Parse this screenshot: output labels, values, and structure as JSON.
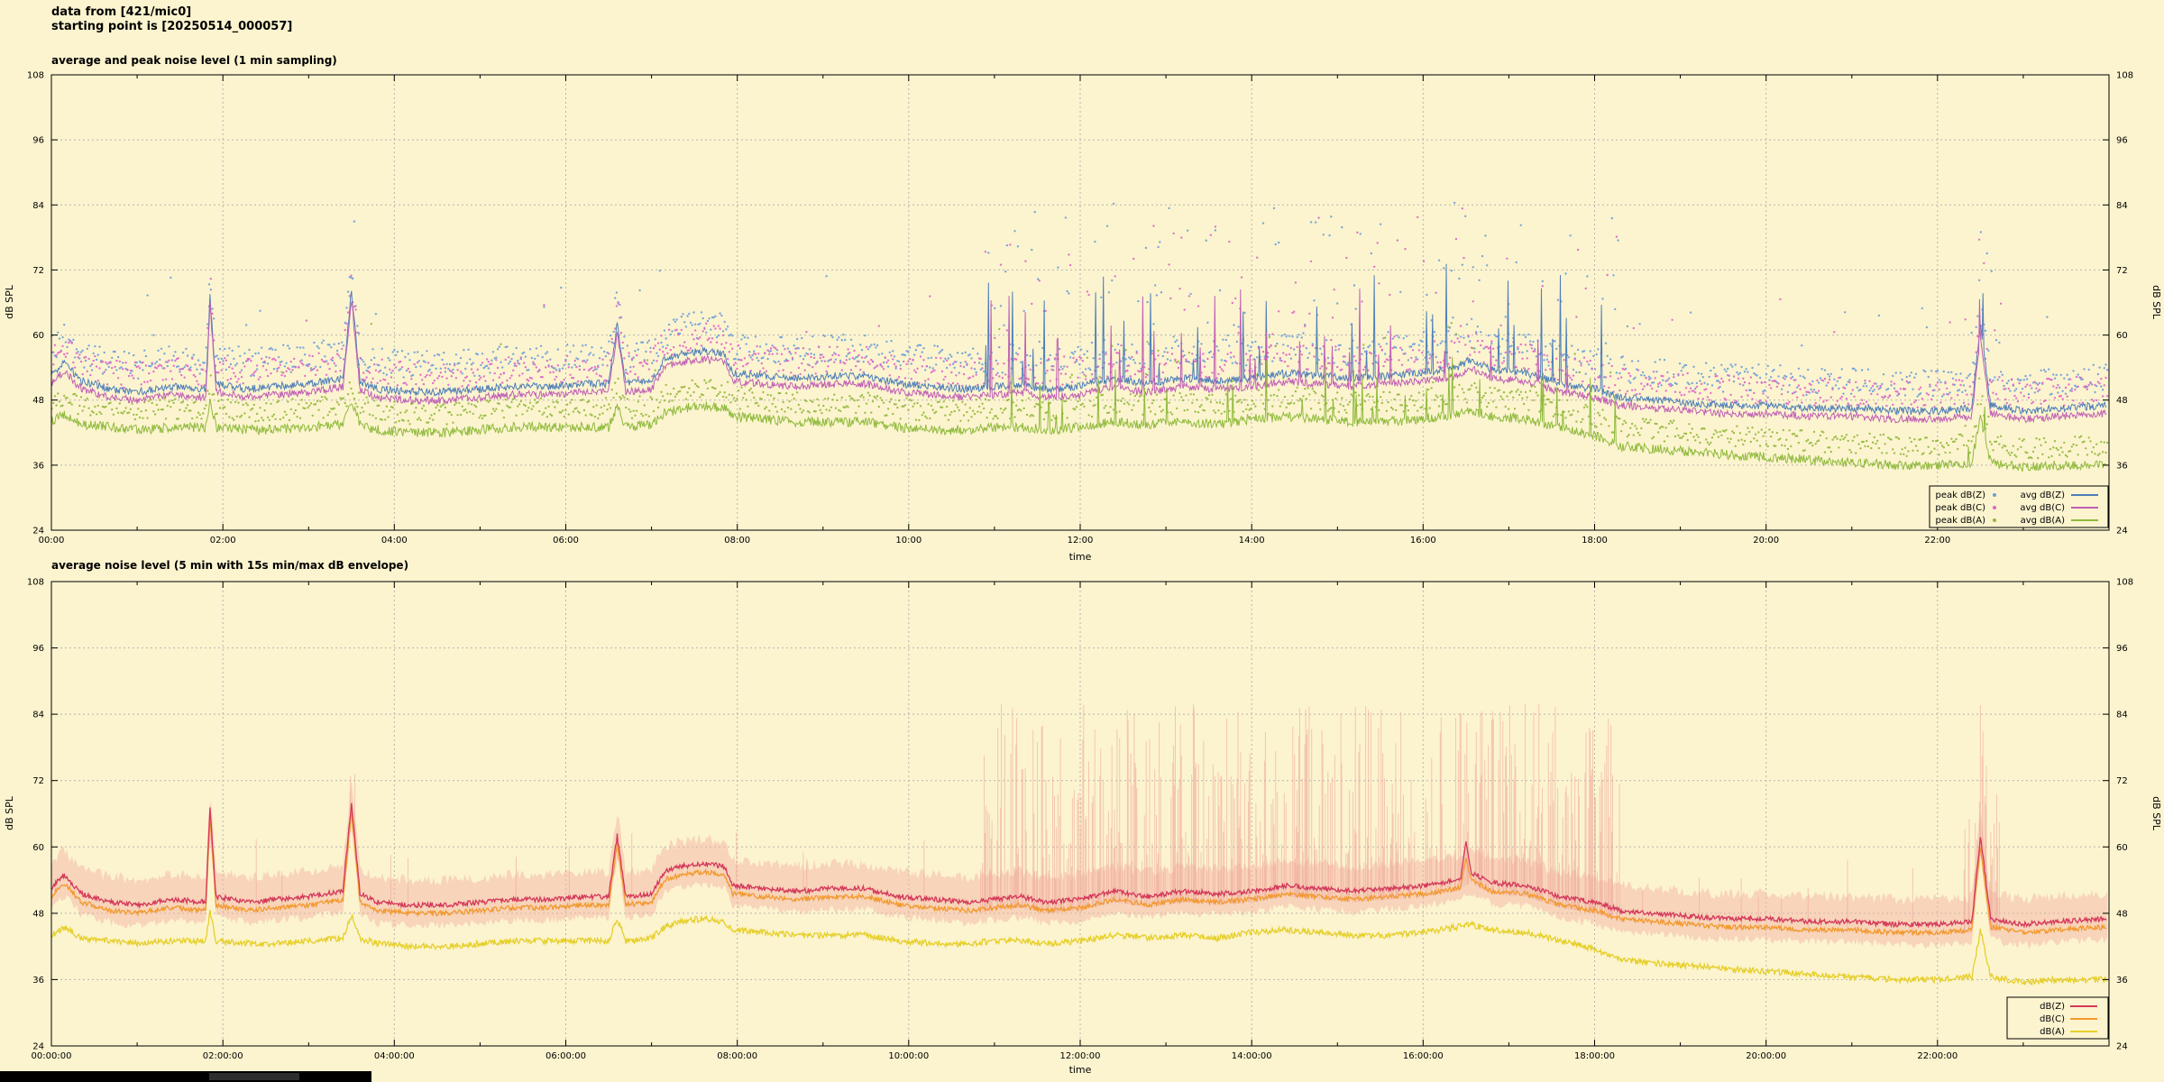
{
  "page": {
    "bg": "#fcf4cf"
  },
  "header": {
    "line1": "data from [421/mic0]",
    "line2": "starting point is [20250514_000057]"
  },
  "footer_bar": {
    "color": "#000000"
  },
  "series_points": {
    "Z": [
      [
        0,
        52.5
      ],
      [
        0.15,
        55
      ],
      [
        0.35,
        51.5
      ],
      [
        0.7,
        50
      ],
      [
        1,
        49.5
      ],
      [
        1.4,
        50.5
      ],
      [
        1.8,
        50
      ],
      [
        1.85,
        67
      ],
      [
        1.92,
        51
      ],
      [
        2.3,
        50
      ],
      [
        2.6,
        50.5
      ],
      [
        3,
        51
      ],
      [
        3.4,
        52
      ],
      [
        3.5,
        68
      ],
      [
        3.6,
        51.5
      ],
      [
        3.8,
        50
      ],
      [
        4.2,
        49.5
      ],
      [
        4.6,
        49.5
      ],
      [
        5,
        50
      ],
      [
        5.4,
        50.5
      ],
      [
        5.8,
        50.5
      ],
      [
        6.2,
        51
      ],
      [
        6.5,
        51
      ],
      [
        6.6,
        62
      ],
      [
        6.7,
        51
      ],
      [
        7,
        51.5
      ],
      [
        7.15,
        55.5
      ],
      [
        7.35,
        56.5
      ],
      [
        7.6,
        57
      ],
      [
        7.85,
        56.5
      ],
      [
        7.95,
        53
      ],
      [
        8.3,
        52.5
      ],
      [
        8.7,
        52
      ],
      [
        9.1,
        52.5
      ],
      [
        9.5,
        52.5
      ],
      [
        9.9,
        51
      ],
      [
        10.3,
        50.5
      ],
      [
        10.7,
        50
      ],
      [
        11,
        50.5
      ],
      [
        11.3,
        51
      ],
      [
        11.6,
        50
      ],
      [
        12,
        50.5
      ],
      [
        12.4,
        52
      ],
      [
        12.8,
        51
      ],
      [
        13.2,
        52
      ],
      [
        13.6,
        51.5
      ],
      [
        14,
        52
      ],
      [
        14.4,
        53
      ],
      [
        14.8,
        52.5
      ],
      [
        15.2,
        52
      ],
      [
        15.6,
        52.5
      ],
      [
        16,
        53
      ],
      [
        16.4,
        54
      ],
      [
        16.55,
        55.5
      ],
      [
        16.8,
        53.5
      ],
      [
        17.2,
        53
      ],
      [
        17.6,
        51
      ],
      [
        18,
        50
      ],
      [
        18.3,
        48.5
      ],
      [
        18.7,
        48
      ],
      [
        19.1,
        47.5
      ],
      [
        19.5,
        47
      ],
      [
        20,
        47
      ],
      [
        20.5,
        46.5
      ],
      [
        21,
        46.5
      ],
      [
        21.5,
        46
      ],
      [
        22,
        46
      ],
      [
        22.4,
        46.5
      ],
      [
        22.5,
        62
      ],
      [
        22.62,
        47
      ],
      [
        23,
        46
      ],
      [
        23.4,
        46.5
      ],
      [
        23.95,
        47
      ]
    ],
    "C": [
      [
        0,
        51
      ],
      [
        0.15,
        53.5
      ],
      [
        0.35,
        50
      ],
      [
        0.7,
        48.5
      ],
      [
        1,
        48
      ],
      [
        1.4,
        49
      ],
      [
        1.8,
        48.5
      ],
      [
        1.85,
        65.5
      ],
      [
        1.92,
        49.5
      ],
      [
        2.3,
        48.5
      ],
      [
        2.6,
        49
      ],
      [
        3,
        49.5
      ],
      [
        3.4,
        50.5
      ],
      [
        3.5,
        66.5
      ],
      [
        3.6,
        50
      ],
      [
        3.8,
        48.5
      ],
      [
        4.2,
        48
      ],
      [
        4.6,
        48
      ],
      [
        5,
        48.5
      ],
      [
        5.4,
        49
      ],
      [
        5.8,
        49
      ],
      [
        6.2,
        49.5
      ],
      [
        6.5,
        49.5
      ],
      [
        6.6,
        60.5
      ],
      [
        6.7,
        49.5
      ],
      [
        7,
        50
      ],
      [
        7.15,
        54
      ],
      [
        7.35,
        55
      ],
      [
        7.6,
        55.5
      ],
      [
        7.85,
        55
      ],
      [
        7.95,
        51.5
      ],
      [
        8.3,
        51
      ],
      [
        8.7,
        50.5
      ],
      [
        9.1,
        51
      ],
      [
        9.5,
        51
      ],
      [
        9.9,
        49.5
      ],
      [
        10.3,
        49
      ],
      [
        10.7,
        48.5
      ],
      [
        11,
        49
      ],
      [
        11.3,
        49.5
      ],
      [
        11.6,
        48.5
      ],
      [
        12,
        49
      ],
      [
        12.4,
        50.5
      ],
      [
        12.8,
        49.5
      ],
      [
        13.2,
        50.5
      ],
      [
        13.6,
        50
      ],
      [
        14,
        50.5
      ],
      [
        14.4,
        51.5
      ],
      [
        14.8,
        51
      ],
      [
        15.2,
        50.5
      ],
      [
        15.6,
        51
      ],
      [
        16,
        51.5
      ],
      [
        16.4,
        52.5
      ],
      [
        16.55,
        54
      ],
      [
        16.8,
        52
      ],
      [
        17.2,
        51.5
      ],
      [
        17.6,
        49.5
      ],
      [
        18,
        48.5
      ],
      [
        18.3,
        47
      ],
      [
        18.7,
        46.5
      ],
      [
        19.1,
        46
      ],
      [
        19.5,
        45.5
      ],
      [
        20,
        45.5
      ],
      [
        20.5,
        45
      ],
      [
        21,
        45
      ],
      [
        21.5,
        44.5
      ],
      [
        22,
        44.5
      ],
      [
        22.4,
        45
      ],
      [
        22.5,
        60
      ],
      [
        22.62,
        45.5
      ],
      [
        23,
        44.5
      ],
      [
        23.4,
        45
      ],
      [
        23.95,
        45.5
      ]
    ],
    "A": [
      [
        0,
        44
      ],
      [
        0.15,
        45.5
      ],
      [
        0.35,
        43.5
      ],
      [
        0.7,
        43
      ],
      [
        1,
        42.5
      ],
      [
        1.4,
        43
      ],
      [
        1.8,
        43
      ],
      [
        1.85,
        48.5
      ],
      [
        1.92,
        43
      ],
      [
        2.3,
        42.5
      ],
      [
        2.6,
        42.5
      ],
      [
        3,
        43
      ],
      [
        3.4,
        43.5
      ],
      [
        3.5,
        47.5
      ],
      [
        3.6,
        43.5
      ],
      [
        3.8,
        42.5
      ],
      [
        4.2,
        42
      ],
      [
        4.6,
        42
      ],
      [
        5,
        42.5
      ],
      [
        5.4,
        43
      ],
      [
        5.8,
        43
      ],
      [
        6.2,
        43
      ],
      [
        6.5,
        43
      ],
      [
        6.6,
        47
      ],
      [
        6.7,
        43
      ],
      [
        7,
        43.5
      ],
      [
        7.15,
        45.5
      ],
      [
        7.35,
        46.5
      ],
      [
        7.6,
        47
      ],
      [
        7.85,
        46.5
      ],
      [
        7.95,
        45
      ],
      [
        8.3,
        44.5
      ],
      [
        8.7,
        44
      ],
      [
        9.1,
        44
      ],
      [
        9.5,
        44
      ],
      [
        9.9,
        43
      ],
      [
        10.3,
        42.5
      ],
      [
        10.7,
        42.5
      ],
      [
        11,
        43
      ],
      [
        11.3,
        43
      ],
      [
        11.6,
        42.5
      ],
      [
        12,
        43
      ],
      [
        12.4,
        44
      ],
      [
        12.8,
        43.5
      ],
      [
        13.2,
        44
      ],
      [
        13.6,
        43.5
      ],
      [
        14,
        44.5
      ],
      [
        14.4,
        45
      ],
      [
        14.8,
        44.5
      ],
      [
        15.2,
        44
      ],
      [
        15.6,
        44
      ],
      [
        16,
        44.5
      ],
      [
        16.4,
        45.5
      ],
      [
        16.55,
        46
      ],
      [
        16.8,
        45
      ],
      [
        17.2,
        44.5
      ],
      [
        17.6,
        43
      ],
      [
        18,
        41.5
      ],
      [
        18.3,
        39.5
      ],
      [
        18.7,
        39
      ],
      [
        19.1,
        38.5
      ],
      [
        19.5,
        38
      ],
      [
        20,
        37.5
      ],
      [
        20.5,
        37
      ],
      [
        21,
        36.5
      ],
      [
        21.5,
        36
      ],
      [
        22,
        36
      ],
      [
        22.4,
        36.5
      ],
      [
        22.5,
        45
      ],
      [
        22.62,
        36.5
      ],
      [
        23,
        35.5
      ],
      [
        23.4,
        36
      ],
      [
        23.95,
        36
      ]
    ]
  },
  "burst_windows": [
    {
      "t0": 10.8,
      "t1": 18.3,
      "k": 1
    },
    {
      "t0": 22.3,
      "t1": 22.75,
      "k": 0.7
    }
  ],
  "chart_data": [
    {
      "type": "line+scatter",
      "title": "average and peak noise level (1 min sampling)",
      "xlabel": "time",
      "ylabel": "dB SPL",
      "ylim": [
        24,
        108
      ],
      "yticks": [
        24,
        36,
        48,
        60,
        72,
        84,
        96,
        108
      ],
      "xlim": [
        0,
        24
      ],
      "xticks": [
        {
          "t": 0,
          "label": "00:00"
        },
        {
          "t": 2,
          "label": "02:00"
        },
        {
          "t": 4,
          "label": "04:00"
        },
        {
          "t": 6,
          "label": "06:00"
        },
        {
          "t": 8,
          "label": "08:00"
        },
        {
          "t": 10,
          "label": "10:00"
        },
        {
          "t": 12,
          "label": "12:00"
        },
        {
          "t": 14,
          "label": "14:00"
        },
        {
          "t": 16,
          "label": "16:00"
        },
        {
          "t": 18,
          "label": "18:00"
        },
        {
          "t": 20,
          "label": "20:00"
        },
        {
          "t": 22,
          "label": "22:00"
        }
      ],
      "grid": true,
      "scatter_series": [
        {
          "name": "peak dB(Z)",
          "color": "#6c9fd8",
          "points": "Z",
          "offset": 5,
          "jitter": 2.6,
          "burst_p": 0.22,
          "burst_add": 28,
          "outlier_p": 0.015
        },
        {
          "name": "peak dB(C)",
          "color": "#df64c8",
          "points": "C",
          "offset": 4.5,
          "jitter": 2.6,
          "burst_p": 0.2,
          "burst_add": 26,
          "outlier_p": 0.013
        },
        {
          "name": "peak dB(A)",
          "color": "#93b83c",
          "points": "A",
          "offset": 3.5,
          "jitter": 2.0,
          "burst_p": 0.15,
          "burst_add": 13,
          "outlier_p": 0.008
        }
      ],
      "line_series": [
        {
          "name": "avg dB(Z)",
          "color": "#4d7eb8",
          "points": "Z",
          "jitter": 0.7,
          "spike_p": 0.04,
          "spike_add": 17
        },
        {
          "name": "avg dB(C)",
          "color": "#c05fb4",
          "points": "C",
          "jitter": 0.7,
          "spike_p": 0.04,
          "spike_add": 16
        },
        {
          "name": "avg dB(A)",
          "color": "#8fba3c",
          "points": "A",
          "jitter": 0.9,
          "spike_p": 0.03,
          "spike_add": 8
        }
      ],
      "legend": {
        "columns": [
          [
            "peak dB(Z)",
            "peak dB(C)",
            "peak dB(A)"
          ],
          [
            "avg dB(Z)",
            "avg dB(C)",
            "avg dB(A)"
          ]
        ]
      }
    },
    {
      "type": "line+envelope",
      "title": "average noise level (5 min with 15s min/max dB envelope)",
      "xlabel": "time",
      "ylabel": "dB SPL",
      "ylim": [
        24,
        108
      ],
      "yticks": [
        24,
        36,
        48,
        60,
        72,
        84,
        96,
        108
      ],
      "xlim": [
        0,
        24
      ],
      "xticks": [
        {
          "t": 0,
          "label": "00:00:00"
        },
        {
          "t": 2,
          "label": "02:00:00"
        },
        {
          "t": 4,
          "label": "04:00:00"
        },
        {
          "t": 6,
          "label": "06:00:00"
        },
        {
          "t": 8,
          "label": "08:00:00"
        },
        {
          "t": 10,
          "label": "10:00:00"
        },
        {
          "t": 12,
          "label": "12:00:00"
        },
        {
          "t": 14,
          "label": "14:00:00"
        },
        {
          "t": 16,
          "label": "16:00:00"
        },
        {
          "t": 18,
          "label": "18:00:00"
        },
        {
          "t": 20,
          "label": "20:00:00"
        },
        {
          "t": 22,
          "label": "22:00:00"
        }
      ],
      "grid": true,
      "envelope": {
        "series": "Z",
        "fill": "#f3b3a6",
        "fill_opacity": 0.5,
        "hair_color": "#efa79b",
        "hair_opacity": 0.6,
        "base_up": 3.5,
        "base_down": 3,
        "burst_p": 0.5,
        "burst_add": 32,
        "stray_p": 0.012,
        "stray_add": 9
      },
      "line_series": [
        {
          "name": "dB(C)",
          "color": "#f2992e",
          "points": "C",
          "jitter": 0.45,
          "width": 1.3,
          "extra_spikes": [
            [
              16.5,
              58
            ]
          ]
        },
        {
          "name": "dB(Z)",
          "color": "#d4385a",
          "points": "Z",
          "jitter": 0.45,
          "width": 1.3,
          "extra_spikes": [
            [
              16.5,
              61
            ]
          ]
        },
        {
          "name": "dB(A)",
          "color": "#e6cf2a",
          "points": "A",
          "jitter": 0.55,
          "width": 1.3,
          "extra_spikes": []
        }
      ],
      "legend": {
        "entries": [
          "dB(Z)",
          "dB(C)",
          "dB(A)"
        ]
      }
    }
  ]
}
